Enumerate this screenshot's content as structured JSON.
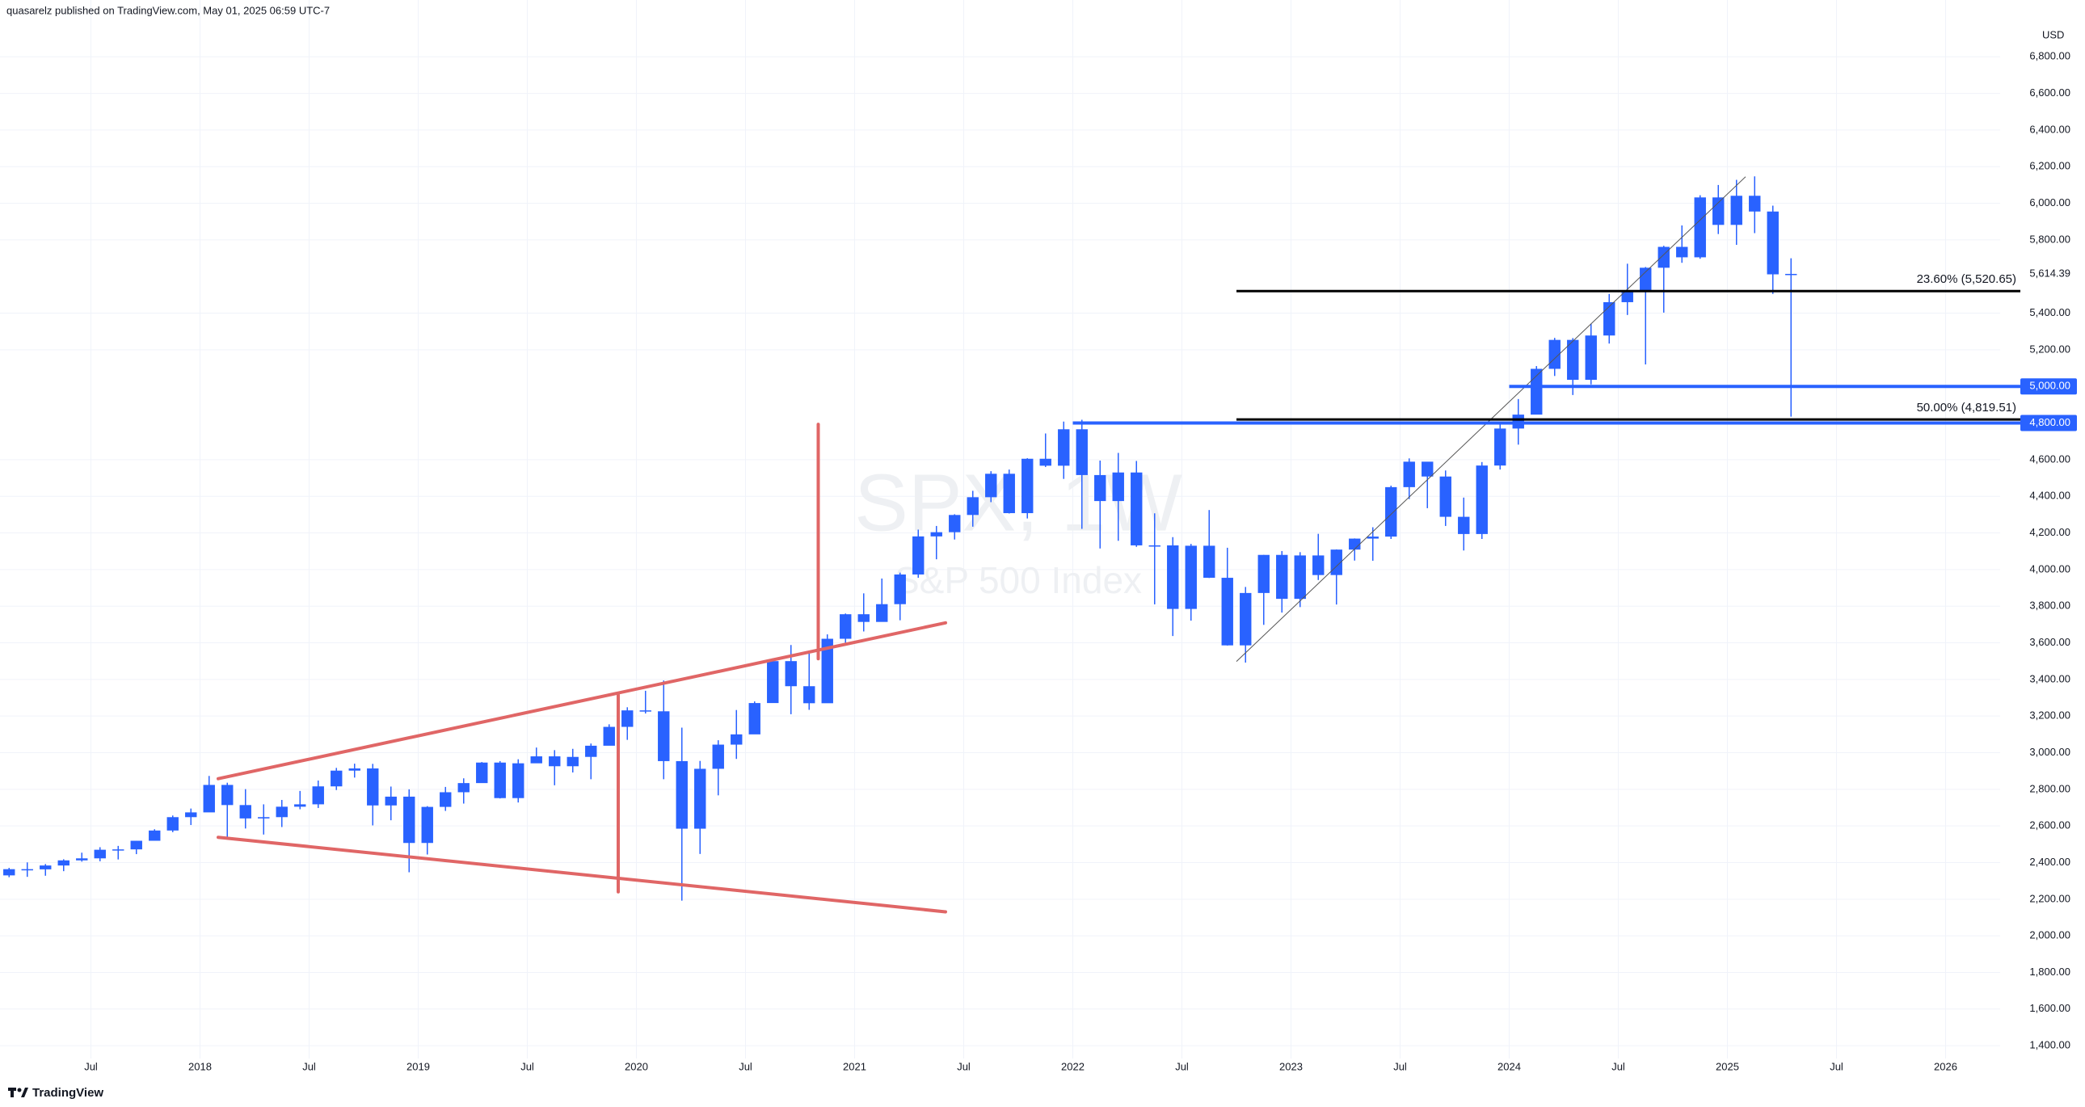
{
  "header": {
    "text": "quasarelz published on TradingView.com, May 01, 2025 06:59 UTC-7"
  },
  "footer": {
    "brand": "TradingView"
  },
  "chart_data": {
    "type": "candlestick",
    "watermark": {
      "symbol": "SPX, 1W",
      "name": "S&P 500 Index"
    },
    "currency": "USD",
    "up_color": "#2962ff",
    "down_color": "#2962ff",
    "grid": true,
    "xlim": [
      "2017-02",
      "2026-04"
    ],
    "ylim": [
      1330,
      7110
    ],
    "xticks": [
      {
        "value": "2017-07",
        "label": "Jul"
      },
      {
        "value": "2018-01",
        "label": "2018"
      },
      {
        "value": "2018-07",
        "label": "Jul"
      },
      {
        "value": "2019-01",
        "label": "2019"
      },
      {
        "value": "2019-07",
        "label": "Jul"
      },
      {
        "value": "2020-01",
        "label": "2020"
      },
      {
        "value": "2020-07",
        "label": "Jul"
      },
      {
        "value": "2021-01",
        "label": "2021"
      },
      {
        "value": "2021-07",
        "label": "Jul"
      },
      {
        "value": "2022-01",
        "label": "2022"
      },
      {
        "value": "2022-07",
        "label": "Jul"
      },
      {
        "value": "2023-01",
        "label": "2023"
      },
      {
        "value": "2023-07",
        "label": "Jul"
      },
      {
        "value": "2024-01",
        "label": "2024"
      },
      {
        "value": "2024-07",
        "label": "Jul"
      },
      {
        "value": "2025-01",
        "label": "2025"
      },
      {
        "value": "2025-07",
        "label": "Jul"
      },
      {
        "value": "2026-01",
        "label": "2026"
      }
    ],
    "yticks": [
      {
        "value": 1400,
        "label": "1,400.00"
      },
      {
        "value": 1600,
        "label": "1,600.00"
      },
      {
        "value": 1800,
        "label": "1,800.00"
      },
      {
        "value": 2000,
        "label": "2,000.00"
      },
      {
        "value": 2200,
        "label": "2,200.00"
      },
      {
        "value": 2400,
        "label": "2,400.00"
      },
      {
        "value": 2600,
        "label": "2,600.00"
      },
      {
        "value": 2800,
        "label": "2,800.00"
      },
      {
        "value": 3000,
        "label": "3,000.00"
      },
      {
        "value": 3200,
        "label": "3,200.00"
      },
      {
        "value": 3400,
        "label": "3,400.00"
      },
      {
        "value": 3600,
        "label": "3,600.00"
      },
      {
        "value": 3800,
        "label": "3,800.00"
      },
      {
        "value": 4000,
        "label": "4,000.00"
      },
      {
        "value": 4200,
        "label": "4,200.00"
      },
      {
        "value": 4400,
        "label": "4,400.00"
      },
      {
        "value": 4600,
        "label": "4,600.00"
      },
      {
        "value": 5200,
        "label": "5,200.00"
      },
      {
        "value": 5400,
        "label": "5,400.00"
      },
      {
        "value": 5800,
        "label": "5,800.00"
      },
      {
        "value": 6000,
        "label": "6,000.00"
      },
      {
        "value": 6200,
        "label": "6,200.00"
      },
      {
        "value": 6400,
        "label": "6,400.00"
      },
      {
        "value": 6600,
        "label": "6,600.00"
      },
      {
        "value": 6800,
        "label": "6,800.00"
      }
    ],
    "x": [
      "2017-02",
      "2017-03",
      "2017-04",
      "2017-05",
      "2017-06",
      "2017-07",
      "2017-08",
      "2017-09",
      "2017-10",
      "2017-11",
      "2017-12",
      "2018-01",
      "2018-02",
      "2018-03",
      "2018-04",
      "2018-05",
      "2018-06",
      "2018-07",
      "2018-08",
      "2018-09",
      "2018-10",
      "2018-11",
      "2018-12",
      "2019-01",
      "2019-02",
      "2019-03",
      "2019-04",
      "2019-05",
      "2019-06",
      "2019-07",
      "2019-08",
      "2019-09",
      "2019-10",
      "2019-11",
      "2019-12",
      "2020-01",
      "2020-02",
      "2020-03",
      "2020-04",
      "2020-05",
      "2020-06",
      "2020-07",
      "2020-08",
      "2020-09",
      "2020-10",
      "2020-11",
      "2020-12",
      "2021-01",
      "2021-02",
      "2021-03",
      "2021-04",
      "2021-05",
      "2021-06",
      "2021-07",
      "2021-08",
      "2021-09",
      "2021-10",
      "2021-11",
      "2021-12",
      "2022-01",
      "2022-02",
      "2022-03",
      "2022-04",
      "2022-05",
      "2022-06",
      "2022-07",
      "2022-08",
      "2022-09",
      "2022-10",
      "2022-11",
      "2022-12",
      "2023-01",
      "2023-02",
      "2023-03",
      "2023-04",
      "2023-05",
      "2023-06",
      "2023-07",
      "2023-08",
      "2023-09",
      "2023-10",
      "2023-11",
      "2023-12",
      "2024-01",
      "2024-02",
      "2024-03",
      "2024-04",
      "2024-05",
      "2024-06",
      "2024-07",
      "2024-08",
      "2024-09",
      "2024-10",
      "2024-11",
      "2024-12",
      "2025-01",
      "2025-02",
      "2025-03",
      "2025-04"
    ],
    "open": [
      2330,
      2364,
      2363,
      2384,
      2412,
      2423,
      2470,
      2472,
      2519,
      2575,
      2648,
      2674,
      2824,
      2714,
      2641,
      2648,
      2705,
      2718,
      2816,
      2902,
      2914,
      2712,
      2760,
      2507,
      2704,
      2784,
      2834,
      2946,
      2752,
      2942,
      2980,
      2926,
      2977,
      3038,
      3141,
      3231,
      3226,
      2954,
      2585,
      2912,
      3044,
      3100,
      3271,
      3500,
      3363,
      3270,
      3622,
      3756,
      3714,
      3811,
      3973,
      4181,
      4204,
      4298,
      4395,
      4523,
      4308,
      4605,
      4567,
      4766,
      4516,
      4374,
      4530,
      4132,
      4132,
      3785,
      4130,
      3955,
      3586,
      3872,
      4080,
      3840,
      4077,
      3970,
      4109,
      4169,
      4180,
      4450,
      4589,
      4508,
      4288,
      4194,
      4568,
      4770,
      4846,
      5096,
      5254,
      5036,
      5278,
      5460,
      5522,
      5648,
      5762,
      5705,
      6032,
      5882,
      6041,
      5955,
      5612
    ],
    "high": [
      2371,
      2401,
      2392,
      2418,
      2454,
      2484,
      2491,
      2519,
      2582,
      2657,
      2695,
      2873,
      2836,
      2801,
      2718,
      2742,
      2791,
      2848,
      2917,
      2940,
      2939,
      2815,
      2800,
      2708,
      2813,
      2860,
      2949,
      2954,
      2964,
      3028,
      3014,
      3021,
      3050,
      3155,
      3248,
      3338,
      3394,
      3137,
      2955,
      3068,
      3233,
      3280,
      3515,
      3588,
      3550,
      3646,
      3760,
      3870,
      3951,
      3983,
      4218,
      4238,
      4302,
      4430,
      4537,
      4546,
      4608,
      4743,
      4808,
      4818,
      4595,
      4637,
      4593,
      4307,
      4177,
      4140,
      4325,
      4119,
      3905,
      4080,
      4101,
      4095,
      4195,
      4110,
      4170,
      4231,
      4458,
      4607,
      4584,
      4541,
      4393,
      4587,
      4793,
      4931,
      5111,
      5265,
      5264,
      5342,
      5505,
      5670,
      5652,
      5768,
      5879,
      6044,
      6100,
      6128,
      6147,
      5987,
      5700
    ],
    "low": [
      2320,
      2322,
      2328,
      2353,
      2405,
      2407,
      2417,
      2446,
      2520,
      2566,
      2605,
      2683,
      2533,
      2586,
      2553,
      2594,
      2691,
      2698,
      2796,
      2864,
      2603,
      2631,
      2347,
      2444,
      2682,
      2722,
      2848,
      2750,
      2728,
      2952,
      2822,
      2892,
      2855,
      3050,
      3070,
      3214,
      2855,
      2192,
      2447,
      2767,
      2966,
      3115,
      3284,
      3210,
      3234,
      3279,
      3594,
      3662,
      3725,
      3723,
      3955,
      4056,
      4164,
      4234,
      4368,
      4306,
      4279,
      4560,
      4495,
      4222,
      4115,
      4157,
      4124,
      3810,
      3637,
      3721,
      3954,
      3585,
      3492,
      3698,
      3765,
      3795,
      3943,
      3809,
      4049,
      4048,
      4167,
      4385,
      4335,
      4238,
      4104,
      4167,
      4546,
      4682,
      4853,
      5057,
      4953,
      5011,
      5234,
      5390,
      5120,
      5403,
      5675,
      5697,
      5832,
      5773,
      5837,
      5505,
      4835
    ],
    "close": [
      2364,
      2363,
      2384,
      2412,
      2423,
      2470,
      2472,
      2519,
      2575,
      2648,
      2674,
      2824,
      2714,
      2641,
      2648,
      2705,
      2718,
      2816,
      2902,
      2914,
      2712,
      2760,
      2507,
      2704,
      2784,
      2834,
      2946,
      2752,
      2942,
      2980,
      2926,
      2977,
      3038,
      3141,
      3231,
      3226,
      2954,
      2585,
      2912,
      3044,
      3100,
      3271,
      3500,
      3363,
      3270,
      3622,
      3756,
      3714,
      3811,
      3973,
      4181,
      4204,
      4298,
      4395,
      4523,
      4308,
      4605,
      4567,
      4766,
      4516,
      4374,
      4530,
      4132,
      4132,
      3785,
      4130,
      3955,
      3586,
      3872,
      4080,
      3840,
      4077,
      3970,
      4109,
      4169,
      4180,
      4450,
      4589,
      4508,
      4288,
      4194,
      4568,
      4770,
      4846,
      5096,
      5254,
      5036,
      5278,
      5460,
      5522,
      5648,
      5762,
      5705,
      6032,
      5882,
      6041,
      5955,
      5612,
      5614.39
    ],
    "last_price_label": "5,614.39",
    "fib_levels": [
      {
        "value": 5520.65,
        "label": "23.60% (5,520.65)",
        "start": "2022-10",
        "color": "#000000"
      },
      {
        "value": 4819.51,
        "label": "50.00% (4,819.51)",
        "start": "2022-10",
        "color": "#000000"
      }
    ],
    "levels": [
      {
        "value": 5000,
        "label": "5,000.00",
        "start": "2024-01",
        "color": "#2962ff"
      },
      {
        "value": 4800,
        "label": "4,800.00",
        "start": "2022-01",
        "color": "#2962ff"
      }
    ],
    "trendlines": [
      {
        "x": [
          "2018-02",
          "2021-06"
        ],
        "y": [
          2858,
          3709
        ],
        "color": "#e06666"
      },
      {
        "x": [
          "2018-02",
          "2021-06"
        ],
        "y": [
          2538,
          2131
        ],
        "color": "#e06666"
      },
      {
        "x": [
          "2019-12",
          "2019-12"
        ],
        "y": [
          3316,
          2240
        ],
        "color": "#e06666"
      },
      {
        "x": [
          "2020-11",
          "2020-11"
        ],
        "y": [
          4793,
          3513
        ],
        "color": "#e06666"
      }
    ],
    "regression_line": {
      "x": [
        "2022-10",
        "2025-02"
      ],
      "y": [
        3498,
        6145
      ],
      "color": "#555555"
    }
  }
}
